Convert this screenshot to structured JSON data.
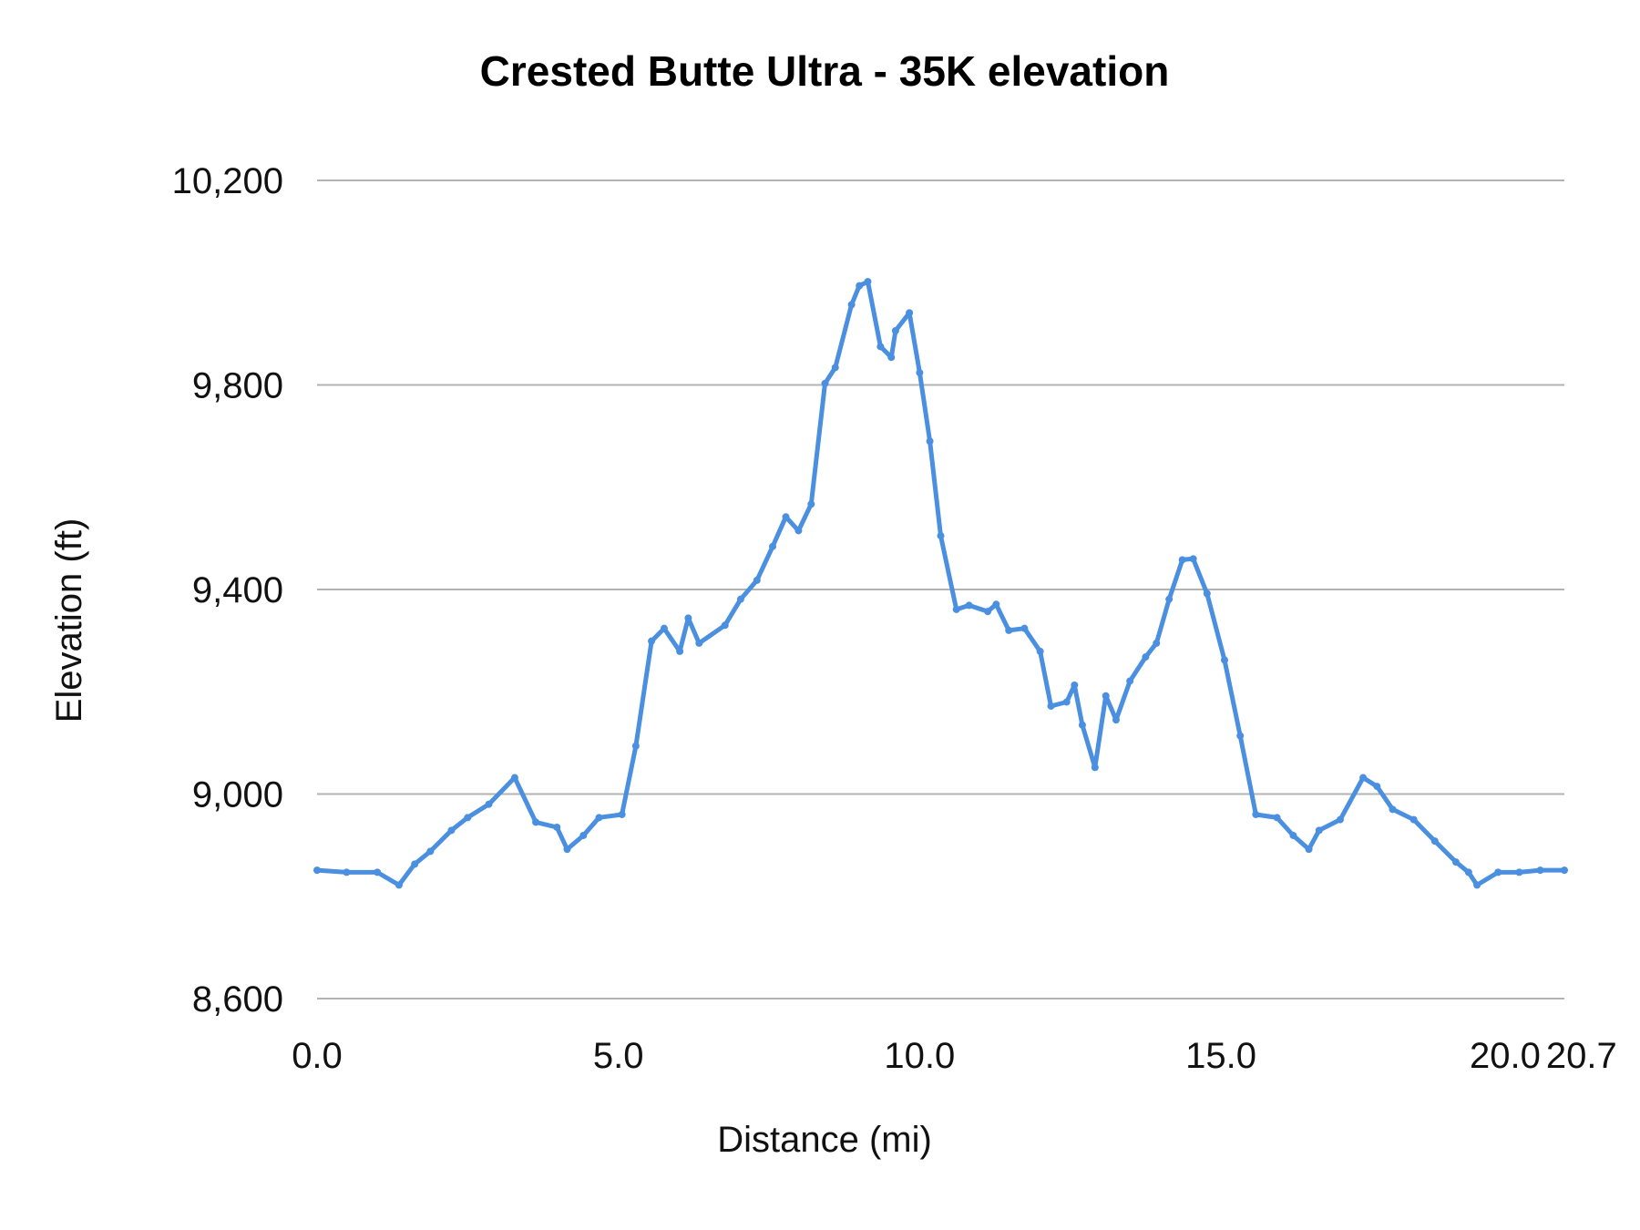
{
  "chart_data": {
    "type": "line",
    "title": "Crested Butte Ultra - 35K elevation",
    "xlabel": "Distance (mi)",
    "ylabel": "Elevation (ft)",
    "xlim": [
      0,
      20.7
    ],
    "ylim": [
      8600,
      10200
    ],
    "x_ticks": [
      "0.0",
      "5.0",
      "10.0",
      "15.0",
      "20.0",
      "20.7"
    ],
    "x_tick_values": [
      0,
      5,
      10,
      15,
      20,
      20.7
    ],
    "y_ticks": [
      "8,600",
      "9,000",
      "9,400",
      "9,800",
      "10,200"
    ],
    "y_tick_values": [
      8600,
      9000,
      9400,
      9800,
      10200
    ],
    "grid": "horizontal",
    "legend": "none",
    "color": "#4a8fe0",
    "series": [
      {
        "x": [
          0,
          0.49,
          1.0,
          1.36,
          1.62,
          1.88,
          2.23,
          2.5,
          2.85,
          3.28,
          3.63,
          3.98,
          4.15,
          4.42,
          4.68,
          5.06,
          5.29,
          5.55,
          5.76,
          6.02,
          6.16,
          6.34,
          6.77,
          7.03,
          7.3,
          7.56,
          7.78,
          7.99,
          8.2,
          8.43,
          8.6,
          8.87,
          9.0,
          9.14,
          9.35,
          9.53,
          9.6,
          9.83,
          10.0,
          10.17,
          10.35,
          10.61,
          10.82,
          11.13,
          11.27,
          11.48,
          11.74,
          12.0,
          12.18,
          12.44,
          12.57,
          12.7,
          12.91,
          13.09,
          13.26,
          13.49,
          13.75,
          13.93,
          14.14,
          14.36,
          14.54,
          14.77,
          15.06,
          15.32,
          15.58,
          15.93,
          16.2,
          16.46,
          16.63,
          16.98,
          17.36,
          17.59,
          17.85,
          18.2,
          18.55,
          18.9,
          19.11,
          19.25,
          19.6,
          19.95,
          20.3,
          20.7
        ],
        "y": [
          8851,
          8847,
          8847,
          8822,
          8863,
          8888,
          8929,
          8954,
          8980,
          9032,
          8945,
          8935,
          8892,
          8919,
          8954,
          8960,
          9094,
          9299,
          9324,
          9279,
          9344,
          9295,
          9330,
          9381,
          9418,
          9484,
          9542,
          9515,
          9567,
          9803,
          9834,
          9957,
          9994,
          10002,
          9875,
          9854,
          9906,
          9941,
          9824,
          9690,
          9505,
          9361,
          9369,
          9357,
          9371,
          9320,
          9324,
          9279,
          9172,
          9180,
          9213,
          9135,
          9052,
          9192,
          9145,
          9221,
          9268,
          9295,
          9381,
          9458,
          9460,
          9392,
          9262,
          9114,
          8960,
          8954,
          8919,
          8892,
          8929,
          8950,
          9032,
          9015,
          8970,
          8950,
          8908,
          8867,
          8847,
          8822,
          8847,
          8847,
          8851,
          8851
        ]
      }
    ]
  }
}
